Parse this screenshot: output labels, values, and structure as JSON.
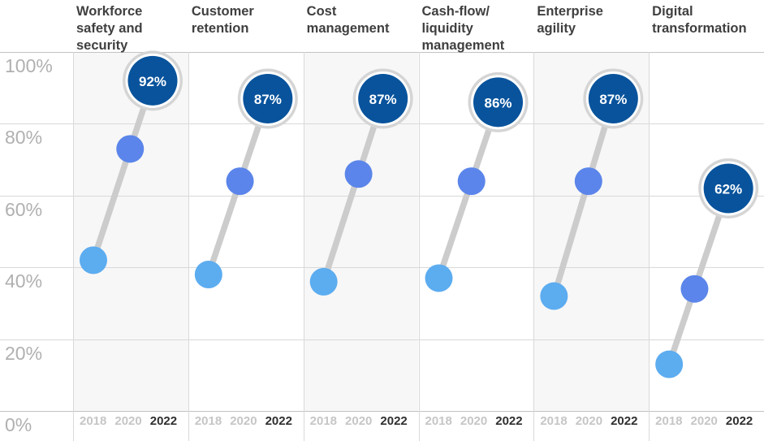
{
  "chart_data": {
    "type": "line",
    "title": "",
    "description_visible_text_only": true,
    "categories": [
      "Workforce safety and security",
      "Customer retention",
      "Cost management",
      "Cash-flow/ liquidity management",
      "Enterprise agility",
      "Digital transformation"
    ],
    "x_years": [
      "2018",
      "2020",
      "2022"
    ],
    "series": [
      {
        "category": "Workforce safety and security",
        "values": [
          42,
          73,
          92
        ],
        "label_2022": "92%"
      },
      {
        "category": "Customer retention",
        "values": [
          38,
          64,
          87
        ],
        "label_2022": "87%"
      },
      {
        "category": "Cost management",
        "values": [
          36,
          66,
          87
        ],
        "label_2022": "87%"
      },
      {
        "category": "Cash-flow/ liquidity management",
        "values": [
          37,
          64,
          86
        ],
        "label_2022": "86%"
      },
      {
        "category": "Enterprise agility",
        "values": [
          32,
          64,
          87
        ],
        "label_2022": "87%"
      },
      {
        "category": "Digital transformation",
        "values": [
          13,
          34,
          62
        ],
        "label_2022": "62%"
      }
    ],
    "y_ticks": [
      "100%",
      "80%",
      "60%",
      "40%",
      "20%",
      "0%"
    ],
    "ylim": [
      0,
      100
    ],
    "grid": true,
    "legend": "none",
    "highlighted_year": "2022",
    "colors": {
      "bubble_2022": "#08539c",
      "bubble_ring": "#d5d5d5",
      "bubble_inner_ring": "#ffffff",
      "bubble_text": "#ffffff",
      "dot_2020": "#5b85ea",
      "dot_2018": "#5cacf0",
      "trend_line": "#cccccc",
      "shaded_column": "#f7f7f7",
      "gridline": "#d9d9d9",
      "gridline_strong": "#c3c3c3",
      "category_text": "#3f3f3f",
      "y_tick_text": "#b0b0b0",
      "year_muted": "#c6c6c6",
      "year_active": "#2f2f2f"
    }
  }
}
